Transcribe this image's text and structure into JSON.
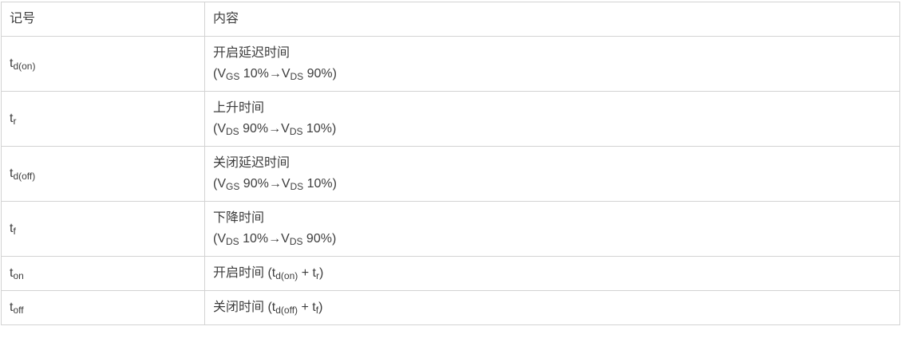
{
  "colors": {
    "background": "#ffffff",
    "border": "#d3d3d3",
    "text": "#3d3d3d"
  },
  "table": {
    "header": {
      "symbol": "记号",
      "content": "内容"
    },
    "rows": [
      {
        "id": "td-on",
        "symbol": [
          {
            "t": "t"
          },
          {
            "t": "d(on)",
            "sub": true
          }
        ],
        "content": [
          [
            {
              "t": "开启延迟时间"
            }
          ],
          [
            {
              "t": "(V"
            },
            {
              "t": "GS",
              "sub": true
            },
            {
              "t": " 10%→V"
            },
            {
              "t": "DS",
              "sub": true
            },
            {
              "t": " 90%)"
            }
          ]
        ]
      },
      {
        "id": "tr",
        "symbol": [
          {
            "t": "t"
          },
          {
            "t": "r",
            "sub": true
          }
        ],
        "content": [
          [
            {
              "t": "上升时间"
            }
          ],
          [
            {
              "t": "(V"
            },
            {
              "t": "DS",
              "sub": true
            },
            {
              "t": " 90%→V"
            },
            {
              "t": "DS",
              "sub": true
            },
            {
              "t": " 10%)"
            }
          ]
        ]
      },
      {
        "id": "td-off",
        "symbol": [
          {
            "t": "t"
          },
          {
            "t": "d(off)",
            "sub": true
          }
        ],
        "content": [
          [
            {
              "t": "关闭延迟时间"
            }
          ],
          [
            {
              "t": "(V"
            },
            {
              "t": "GS",
              "sub": true
            },
            {
              "t": " 90%→V"
            },
            {
              "t": "DS",
              "sub": true
            },
            {
              "t": " 10%)"
            }
          ]
        ]
      },
      {
        "id": "tf",
        "symbol": [
          {
            "t": "t"
          },
          {
            "t": "f",
            "sub": true
          }
        ],
        "content": [
          [
            {
              "t": "下降时间"
            }
          ],
          [
            {
              "t": "(V"
            },
            {
              "t": "DS",
              "sub": true
            },
            {
              "t": " 10%→V"
            },
            {
              "t": "DS",
              "sub": true
            },
            {
              "t": " 90%)"
            }
          ]
        ]
      },
      {
        "id": "ton",
        "symbol": [
          {
            "t": "t"
          },
          {
            "t": "on",
            "sub": true
          }
        ],
        "content": [
          [
            {
              "t": "开启时间 (t"
            },
            {
              "t": "d(on)",
              "sub": true
            },
            {
              "t": " + t"
            },
            {
              "t": "r",
              "sub": true
            },
            {
              "t": ")"
            }
          ]
        ]
      },
      {
        "id": "toff",
        "symbol": [
          {
            "t": "t"
          },
          {
            "t": "off",
            "sub": true
          }
        ],
        "content": [
          [
            {
              "t": "关闭时间 (t"
            },
            {
              "t": "d(off)",
              "sub": true
            },
            {
              "t": " + t"
            },
            {
              "t": "f",
              "sub": true
            },
            {
              "t": ")"
            }
          ]
        ]
      }
    ]
  }
}
